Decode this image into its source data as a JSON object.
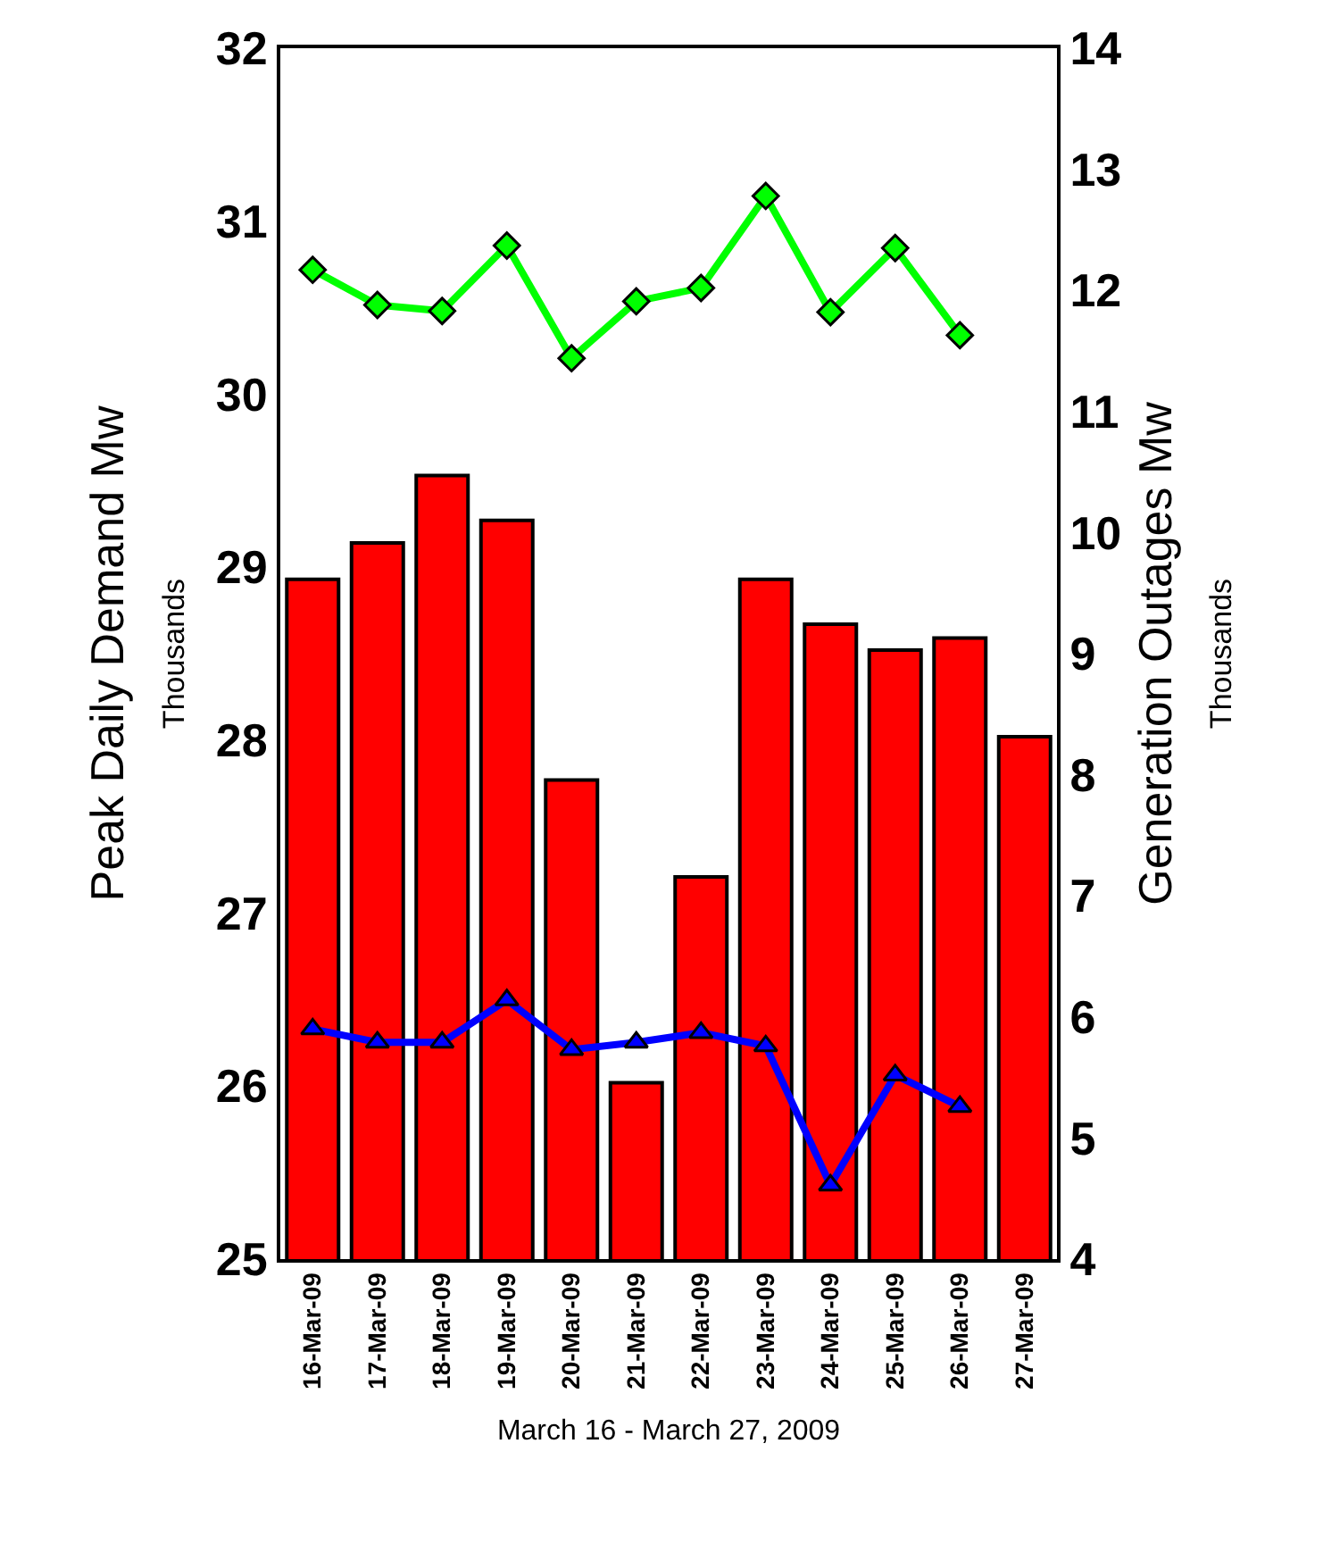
{
  "chart_data": {
    "type": "bar",
    "xlabel": "March 16 - March 27, 2009",
    "ylabel": "Peak Daily Demand Mw\nThousands",
    "y2label": "Generation Outages Mw\nThousands",
    "categories": [
      "16-Mar-09",
      "17-Mar-09",
      "18-Mar-09",
      "19-Mar-09",
      "20-Mar-09",
      "21-Mar-09",
      "22-Mar-09",
      "23-Mar-09",
      "24-Mar-09",
      "25-Mar-09",
      "26-Mar-09",
      "27-Mar-09"
    ],
    "series": [
      {
        "color": "#ff0000",
        "values": [
          28.93,
          29.14,
          29.53,
          29.27,
          27.77,
          26.02,
          27.21,
          28.93,
          28.67,
          28.52,
          28.59,
          28.02
        ]
      },
      {
        "type": "line",
        "axis": "y2",
        "color": "#00ff00",
        "marker": "diamond",
        "values": [
          12.17,
          11.88,
          11.83,
          12.37,
          11.44,
          11.91,
          12.02,
          12.78,
          11.82,
          12.35,
          11.63,
          null
        ]
      },
      {
        "type": "line",
        "axis": "y2",
        "color": "#0000ff",
        "marker": "triangle",
        "values": [
          5.9,
          5.79,
          5.79,
          6.14,
          5.73,
          5.79,
          5.87,
          5.76,
          4.61,
          5.52,
          5.26,
          null
        ]
      }
    ],
    "ylim": [
      25,
      32
    ],
    "yticks": [
      25,
      26,
      27,
      28,
      29,
      30,
      31,
      32
    ],
    "y2lim": [
      4,
      14
    ],
    "y2ticks": [
      4,
      5,
      6,
      7,
      8,
      9,
      10,
      11,
      12,
      13,
      14
    ],
    "grid": false,
    "legend": false
  }
}
